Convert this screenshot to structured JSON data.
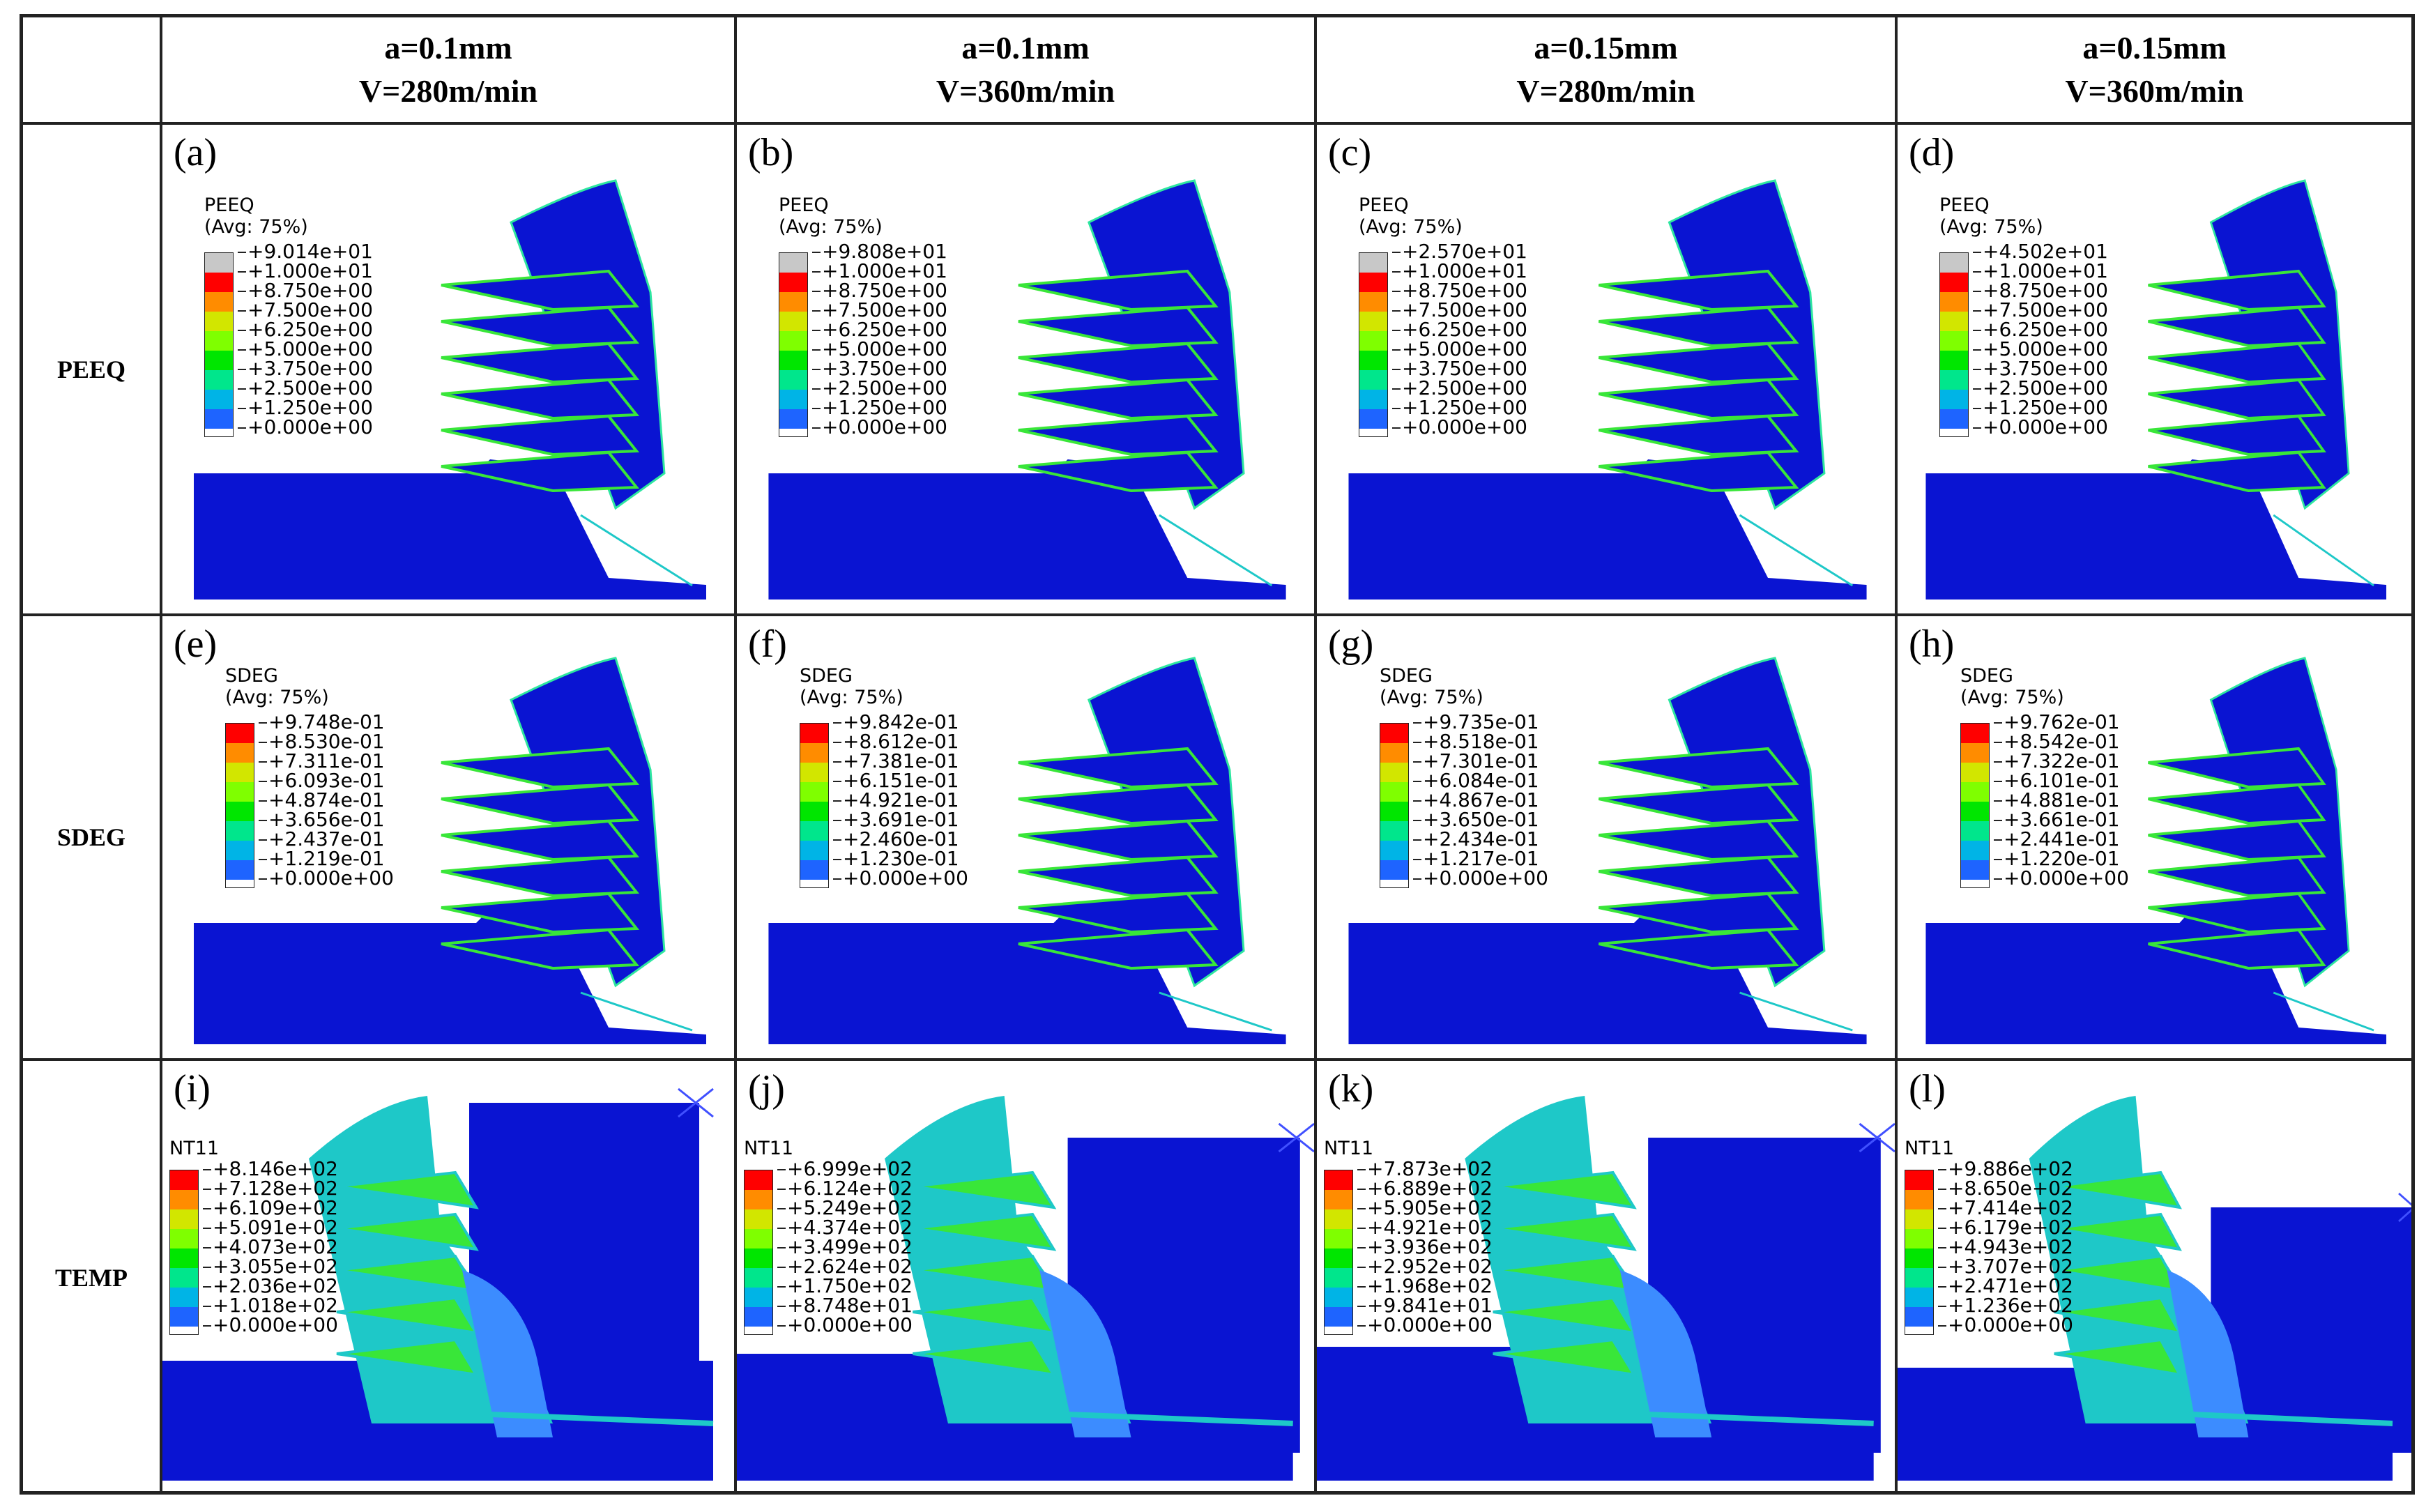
{
  "columns": [
    {
      "line1": "a=0.1mm",
      "line2": "V=280m/min"
    },
    {
      "line1": "a=0.1mm",
      "line2": "V=360m/min"
    },
    {
      "line1": "a=0.15mm",
      "line2": "V=280m/min"
    },
    {
      "line1": "a=0.15mm",
      "line2": "V=360m/min"
    }
  ],
  "rows": [
    "PEEQ",
    "SDEG",
    "TEMP"
  ],
  "panel_labels": [
    "(a)",
    "(b)",
    "(c)",
    "(d)",
    "(e)",
    "(f)",
    "(g)",
    "(h)",
    "(i)",
    "(j)",
    "(k)",
    "(l)"
  ],
  "legends": [
    {
      "title": "PEEQ",
      "avg": "(Avg: 75%)",
      "values": [
        "+9.014e+01",
        "+1.000e+01",
        "+8.750e+00",
        "+7.500e+00",
        "+6.250e+00",
        "+5.000e+00",
        "+3.750e+00",
        "+2.500e+00",
        "+1.250e+00",
        "+0.000e+00"
      ]
    },
    {
      "title": "PEEQ",
      "avg": "(Avg: 75%)",
      "values": [
        "+9.808e+01",
        "+1.000e+01",
        "+8.750e+00",
        "+7.500e+00",
        "+6.250e+00",
        "+5.000e+00",
        "+3.750e+00",
        "+2.500e+00",
        "+1.250e+00",
        "+0.000e+00"
      ]
    },
    {
      "title": "PEEQ",
      "avg": "(Avg: 75%)",
      "values": [
        "+2.570e+01",
        "+1.000e+01",
        "+8.750e+00",
        "+7.500e+00",
        "+6.250e+00",
        "+5.000e+00",
        "+3.750e+00",
        "+2.500e+00",
        "+1.250e+00",
        "+0.000e+00"
      ]
    },
    {
      "title": "PEEQ",
      "avg": "(Avg: 75%)",
      "values": [
        "+4.502e+01",
        "+1.000e+01",
        "+8.750e+00",
        "+7.500e+00",
        "+6.250e+00",
        "+5.000e+00",
        "+3.750e+00",
        "+2.500e+00",
        "+1.250e+00",
        "+0.000e+00"
      ]
    },
    {
      "title": "SDEG",
      "avg": "(Avg: 75%)",
      "values": [
        "+9.748e-01",
        "+8.530e-01",
        "+7.311e-01",
        "+6.093e-01",
        "+4.874e-01",
        "+3.656e-01",
        "+2.437e-01",
        "+1.219e-01",
        "+0.000e+00"
      ]
    },
    {
      "title": "SDEG",
      "avg": "(Avg: 75%)",
      "values": [
        "+9.842e-01",
        "+8.612e-01",
        "+7.381e-01",
        "+6.151e-01",
        "+4.921e-01",
        "+3.691e-01",
        "+2.460e-01",
        "+1.230e-01",
        "+0.000e+00"
      ]
    },
    {
      "title": "SDEG",
      "avg": "(Avg: 75%)",
      "values": [
        "+9.735e-01",
        "+8.518e-01",
        "+7.301e-01",
        "+6.084e-01",
        "+4.867e-01",
        "+3.650e-01",
        "+2.434e-01",
        "+1.217e-01",
        "+0.000e+00"
      ]
    },
    {
      "title": "SDEG",
      "avg": "(Avg: 75%)",
      "values": [
        "+9.762e-01",
        "+8.542e-01",
        "+7.322e-01",
        "+6.101e-01",
        "+4.881e-01",
        "+3.661e-01",
        "+2.441e-01",
        "+1.220e-01",
        "+0.000e+00"
      ]
    },
    {
      "title": "NT11",
      "avg": "",
      "values": [
        "+8.146e+02",
        "+7.128e+02",
        "+6.109e+02",
        "+5.091e+02",
        "+4.073e+02",
        "+3.055e+02",
        "+2.036e+02",
        "+1.018e+02",
        "+0.000e+00"
      ]
    },
    {
      "title": "NT11",
      "avg": "",
      "values": [
        "+6.999e+02",
        "+6.124e+02",
        "+5.249e+02",
        "+4.374e+02",
        "+3.499e+02",
        "+2.624e+02",
        "+1.750e+02",
        "+8.748e+01",
        "+0.000e+00"
      ]
    },
    {
      "title": "NT11",
      "avg": "",
      "values": [
        "+7.873e+02",
        "+6.889e+02",
        "+5.905e+02",
        "+4.921e+02",
        "+3.936e+02",
        "+2.952e+02",
        "+1.968e+02",
        "+9.841e+01",
        "+0.000e+00"
      ]
    },
    {
      "title": "NT11",
      "avg": "",
      "values": [
        "+9.886e+02",
        "+8.650e+02",
        "+7.414e+02",
        "+6.179e+02",
        "+4.943e+02",
        "+3.707e+02",
        "+2.471e+02",
        "+1.236e+02",
        "+0.000e+00"
      ]
    }
  ],
  "colors": {
    "peeq": [
      "#c8c8c8",
      "#ff0000",
      "#ff8c00",
      "#d2e600",
      "#7fff00",
      "#00e600",
      "#00e68c",
      "#00b4e6",
      "#1e64ff",
      "#0000e6"
    ],
    "nine": [
      "#ff0000",
      "#ff8c00",
      "#d2e600",
      "#7fff00",
      "#00e600",
      "#00e68c",
      "#00b4e6",
      "#1e64ff",
      "#0000e6"
    ],
    "mesh": "#0a14d2",
    "chip_edge": "#2ee6a0",
    "band_green": "#39e639",
    "band_cyan": "#1ec8c8",
    "band_light": "#3c8cff"
  }
}
